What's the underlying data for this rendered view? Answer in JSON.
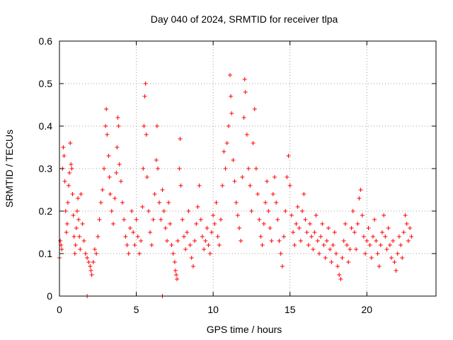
{
  "chart_data": {
    "type": "scatter",
    "title": "Day 040 of 2024, SRMTID for receiver tlpa",
    "xlabel": "GPS time / hours",
    "ylabel": "SRMTID / TECUs",
    "xlim": [
      0,
      24.5
    ],
    "ylim": [
      0,
      0.6
    ],
    "xticks": [
      0,
      5,
      10,
      15,
      20
    ],
    "xtick_labels": [
      "0",
      "5",
      "10",
      "15",
      "20"
    ],
    "yticks": [
      0,
      0.1,
      0.2,
      0.3,
      0.4,
      0.5,
      0.6
    ],
    "ytick_labels": [
      "0",
      "0.1",
      "0.2",
      "0.3",
      "0.4",
      "0.5",
      "0.6"
    ],
    "grid": true,
    "marker": "+",
    "color": "#ff0000",
    "series": [
      {
        "name": "SRMTID",
        "points": [
          [
            0.0,
            0.09
          ],
          [
            0.05,
            0.13
          ],
          [
            0.1,
            0.12
          ],
          [
            0.15,
            0.11
          ],
          [
            0.2,
            0.3
          ],
          [
            0.25,
            0.35
          ],
          [
            0.3,
            0.33
          ],
          [
            0.35,
            0.27
          ],
          [
            0.4,
            0.2
          ],
          [
            0.45,
            0.15
          ],
          [
            0.5,
            0.17
          ],
          [
            0.55,
            0.22
          ],
          [
            0.6,
            0.26
          ],
          [
            0.65,
            0.29
          ],
          [
            0.7,
            0.36
          ],
          [
            0.75,
            0.31
          ],
          [
            0.8,
            0.3
          ],
          [
            0.85,
            0.24
          ],
          [
            0.9,
            0.19
          ],
          [
            0.95,
            0.14
          ],
          [
            1.0,
            0.1
          ],
          [
            1.05,
            0.12
          ],
          [
            1.1,
            0.16
          ],
          [
            1.15,
            0.2
          ],
          [
            1.2,
            0.23
          ],
          [
            1.25,
            0.18
          ],
          [
            1.3,
            0.14
          ],
          [
            1.35,
            0.11
          ],
          [
            1.4,
            0.24
          ],
          [
            1.5,
            0.17
          ],
          [
            1.6,
            0.13
          ],
          [
            1.7,
            0.1
          ],
          [
            1.8,
            0.09
          ],
          [
            1.9,
            0.08
          ],
          [
            2.0,
            0.07
          ],
          [
            2.05,
            0.06
          ],
          [
            2.1,
            0.05
          ],
          [
            2.2,
            0.08
          ],
          [
            2.3,
            0.11
          ],
          [
            2.4,
            0.1
          ],
          [
            2.5,
            0.14
          ],
          [
            2.6,
            0.18
          ],
          [
            2.7,
            0.22
          ],
          [
            2.8,
            0.25
          ],
          [
            2.9,
            0.3
          ],
          [
            3.0,
            0.4
          ],
          [
            3.05,
            0.44
          ],
          [
            3.1,
            0.38
          ],
          [
            3.2,
            0.33
          ],
          [
            3.25,
            0.28
          ],
          [
            3.3,
            0.24
          ],
          [
            3.4,
            0.2
          ],
          [
            3.5,
            0.17
          ],
          [
            3.6,
            0.23
          ],
          [
            3.7,
            0.29
          ],
          [
            3.75,
            0.35
          ],
          [
            3.8,
            0.42
          ],
          [
            3.85,
            0.4
          ],
          [
            3.9,
            0.31
          ],
          [
            4.0,
            0.27
          ],
          [
            4.1,
            0.22
          ],
          [
            4.2,
            0.18
          ],
          [
            4.3,
            0.14
          ],
          [
            4.4,
            0.12
          ],
          [
            4.5,
            0.1
          ],
          [
            4.6,
            0.16
          ],
          [
            4.7,
            0.2
          ],
          [
            4.8,
            0.15
          ],
          [
            4.9,
            0.12
          ],
          [
            5.0,
            0.18
          ],
          [
            5.1,
            0.14
          ],
          [
            5.2,
            0.1
          ],
          [
            5.3,
            0.13
          ],
          [
            5.4,
            0.21
          ],
          [
            5.45,
            0.3
          ],
          [
            5.5,
            0.4
          ],
          [
            5.55,
            0.47
          ],
          [
            5.6,
            0.5
          ],
          [
            5.65,
            0.38
          ],
          [
            5.7,
            0.28
          ],
          [
            5.8,
            0.2
          ],
          [
            5.9,
            0.15
          ],
          [
            6.0,
            0.12
          ],
          [
            6.1,
            0.18
          ],
          [
            6.2,
            0.24
          ],
          [
            6.3,
            0.32
          ],
          [
            6.35,
            0.4
          ],
          [
            6.4,
            0.3
          ],
          [
            6.5,
            0.22
          ],
          [
            6.6,
            0.18
          ],
          [
            6.7,
            0.25
          ],
          [
            6.8,
            0.2
          ],
          [
            6.9,
            0.16
          ],
          [
            7.0,
            0.13
          ],
          [
            7.1,
            0.22
          ],
          [
            7.2,
            0.17
          ],
          [
            7.3,
            0.12
          ],
          [
            7.4,
            0.1
          ],
          [
            7.5,
            0.08
          ],
          [
            7.55,
            0.06
          ],
          [
            7.6,
            0.05
          ],
          [
            7.65,
            0.04
          ],
          [
            7.7,
            0.13
          ],
          [
            7.8,
            0.3
          ],
          [
            7.85,
            0.37
          ],
          [
            7.9,
            0.26
          ],
          [
            8.0,
            0.18
          ],
          [
            8.1,
            0.14
          ],
          [
            8.2,
            0.11
          ],
          [
            8.3,
            0.15
          ],
          [
            8.4,
            0.2
          ],
          [
            8.5,
            0.12
          ],
          [
            8.6,
            0.09
          ],
          [
            8.7,
            0.07
          ],
          [
            8.8,
            0.13
          ],
          [
            8.9,
            0.17
          ],
          [
            9.0,
            0.21
          ],
          [
            9.1,
            0.26
          ],
          [
            9.2,
            0.18
          ],
          [
            9.3,
            0.14
          ],
          [
            9.4,
            0.11
          ],
          [
            9.5,
            0.13
          ],
          [
            9.6,
            0.16
          ],
          [
            9.7,
            0.12
          ],
          [
            9.8,
            0.1
          ],
          [
            9.9,
            0.15
          ],
          [
            10.0,
            0.19
          ],
          [
            10.1,
            0.17
          ],
          [
            10.2,
            0.22
          ],
          [
            10.3,
            0.14
          ],
          [
            10.4,
            0.12
          ],
          [
            10.5,
            0.18
          ],
          [
            10.6,
            0.26
          ],
          [
            10.7,
            0.34
          ],
          [
            10.8,
            0.3
          ],
          [
            10.9,
            0.36
          ],
          [
            11.0,
            0.4
          ],
          [
            11.1,
            0.52
          ],
          [
            11.15,
            0.47
          ],
          [
            11.2,
            0.43
          ],
          [
            11.3,
            0.32
          ],
          [
            11.4,
            0.27
          ],
          [
            11.5,
            0.22
          ],
          [
            11.6,
            0.19
          ],
          [
            11.7,
            0.16
          ],
          [
            11.8,
            0.13
          ],
          [
            11.9,
            0.28
          ],
          [
            12.0,
            0.42
          ],
          [
            12.05,
            0.51
          ],
          [
            12.1,
            0.48
          ],
          [
            12.2,
            0.38
          ],
          [
            12.3,
            0.3
          ],
          [
            12.4,
            0.26
          ],
          [
            12.5,
            0.2
          ],
          [
            12.6,
            0.36
          ],
          [
            12.7,
            0.44
          ],
          [
            12.8,
            0.3
          ],
          [
            12.9,
            0.24
          ],
          [
            13.0,
            0.18
          ],
          [
            13.1,
            0.14
          ],
          [
            13.2,
            0.12
          ],
          [
            13.3,
            0.17
          ],
          [
            13.4,
            0.22
          ],
          [
            13.5,
            0.27
          ],
          [
            13.6,
            0.2
          ],
          [
            13.7,
            0.16
          ],
          [
            13.8,
            0.13
          ],
          [
            13.9,
            0.24
          ],
          [
            14.0,
            0.28
          ],
          [
            14.1,
            0.22
          ],
          [
            14.2,
            0.18
          ],
          [
            14.3,
            0.13
          ],
          [
            14.4,
            0.1
          ],
          [
            14.5,
            0.07
          ],
          [
            14.6,
            0.14
          ],
          [
            14.7,
            0.2
          ],
          [
            14.8,
            0.28
          ],
          [
            14.9,
            0.33
          ],
          [
            15.0,
            0.26
          ],
          [
            15.1,
            0.19
          ],
          [
            15.2,
            0.15
          ],
          [
            15.3,
            0.12
          ],
          [
            15.4,
            0.17
          ],
          [
            15.5,
            0.21
          ],
          [
            15.6,
            0.16
          ],
          [
            15.7,
            0.13
          ],
          [
            15.8,
            0.2
          ],
          [
            15.9,
            0.24
          ],
          [
            16.0,
            0.18
          ],
          [
            16.1,
            0.15
          ],
          [
            16.2,
            0.12
          ],
          [
            16.3,
            0.17
          ],
          [
            16.4,
            0.14
          ],
          [
            16.5,
            0.11
          ],
          [
            16.6,
            0.15
          ],
          [
            16.7,
            0.19
          ],
          [
            16.8,
            0.13
          ],
          [
            16.9,
            0.1
          ],
          [
            17.0,
            0.14
          ],
          [
            17.1,
            0.17
          ],
          [
            17.2,
            0.12
          ],
          [
            17.3,
            0.09
          ],
          [
            17.4,
            0.13
          ],
          [
            17.5,
            0.16
          ],
          [
            17.6,
            0.11
          ],
          [
            17.7,
            0.08
          ],
          [
            17.8,
            0.12
          ],
          [
            17.9,
            0.15
          ],
          [
            18.0,
            0.1
          ],
          [
            18.1,
            0.07
          ],
          [
            18.2,
            0.05
          ],
          [
            18.3,
            0.04
          ],
          [
            18.4,
            0.09
          ],
          [
            18.5,
            0.13
          ],
          [
            18.6,
            0.17
          ],
          [
            18.7,
            0.12
          ],
          [
            18.8,
            0.08
          ],
          [
            18.9,
            0.11
          ],
          [
            19.0,
            0.16
          ],
          [
            19.1,
            0.2
          ],
          [
            19.2,
            0.15
          ],
          [
            19.3,
            0.11
          ],
          [
            19.4,
            0.17
          ],
          [
            19.5,
            0.23
          ],
          [
            19.6,
            0.25
          ],
          [
            19.7,
            0.19
          ],
          [
            19.8,
            0.14
          ],
          [
            19.9,
            0.1
          ],
          [
            20.0,
            0.13
          ],
          [
            20.1,
            0.16
          ],
          [
            20.2,
            0.12
          ],
          [
            20.3,
            0.09
          ],
          [
            20.4,
            0.14
          ],
          [
            20.5,
            0.18
          ],
          [
            20.6,
            0.13
          ],
          [
            20.7,
            0.1
          ],
          [
            20.8,
            0.07
          ],
          [
            20.9,
            0.12
          ],
          [
            21.0,
            0.15
          ],
          [
            21.1,
            0.19
          ],
          [
            21.2,
            0.14
          ],
          [
            21.3,
            0.11
          ],
          [
            21.4,
            0.16
          ],
          [
            21.5,
            0.12
          ],
          [
            21.6,
            0.09
          ],
          [
            21.7,
            0.13
          ],
          [
            21.8,
            0.08
          ],
          [
            21.9,
            0.06
          ],
          [
            22.0,
            0.1
          ],
          [
            22.1,
            0.14
          ],
          [
            22.2,
            0.12
          ],
          [
            22.3,
            0.09
          ],
          [
            22.4,
            0.15
          ],
          [
            22.5,
            0.19
          ],
          [
            22.6,
            0.17
          ],
          [
            22.7,
            0.13
          ],
          [
            22.8,
            0.16
          ],
          [
            22.9,
            0.14
          ],
          [
            1.8,
            0.0
          ],
          [
            6.7,
            0.0
          ]
        ]
      }
    ]
  }
}
